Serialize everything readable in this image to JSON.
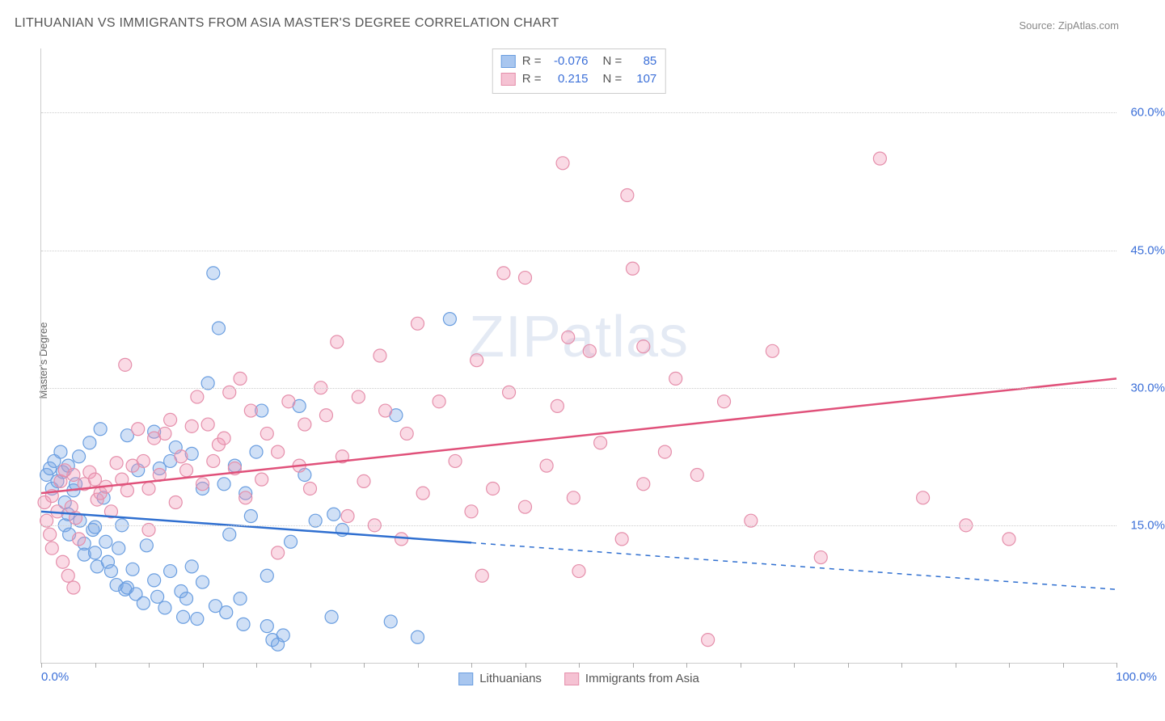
{
  "title": "LITHUANIAN VS IMMIGRANTS FROM ASIA MASTER'S DEGREE CORRELATION CHART",
  "source_label": "Source: ZipAtlas.com",
  "ylabel": "Master's Degree",
  "watermark_bold": "ZIP",
  "watermark_rest": "atlas",
  "chart": {
    "type": "scatter",
    "background_color": "#ffffff",
    "grid_color": "#cccccc",
    "xlim": [
      0,
      100
    ],
    "ylim": [
      0,
      67
    ],
    "x_tick_step": 5,
    "x_min_label": "0.0%",
    "x_max_label": "100.0%",
    "y_gridlines": [
      15,
      30,
      45,
      60
    ],
    "y_tick_labels": [
      "15.0%",
      "30.0%",
      "45.0%",
      "60.0%"
    ],
    "tick_label_color": "#3b6fd8",
    "tick_label_fontsize": 15,
    "axis_color": "#cccccc",
    "marker_radius": 8,
    "marker_stroke_width": 1.2,
    "trend_line_width": 2.5,
    "trend_dash_pattern": "6,6",
    "series": [
      {
        "id": "lithuanians",
        "label": "Lithuanians",
        "color_fill": "rgba(120,165,230,0.35)",
        "color_stroke": "#6a9ee0",
        "swatch_fill": "#a8c6ef",
        "swatch_border": "#6a9ee0",
        "R": "-0.076",
        "N": "85",
        "trend_color": "#2f6fd0",
        "trend_solid_x_end": 40,
        "trend_y_start": 16.5,
        "trend_y_end": 8.0,
        "points": [
          [
            0.5,
            20.5
          ],
          [
            0.8,
            21.2
          ],
          [
            1.0,
            19.0
          ],
          [
            1.2,
            22.0
          ],
          [
            1.5,
            19.8
          ],
          [
            1.8,
            23.0
          ],
          [
            2.0,
            20.8
          ],
          [
            2.2,
            17.5
          ],
          [
            2.2,
            15.0
          ],
          [
            2.5,
            21.5
          ],
          [
            2.5,
            16.2
          ],
          [
            2.6,
            14.0
          ],
          [
            3.0,
            18.8
          ],
          [
            3.2,
            19.5
          ],
          [
            3.5,
            22.5
          ],
          [
            3.6,
            15.5
          ],
          [
            4.0,
            13.0
          ],
          [
            4.0,
            11.8
          ],
          [
            4.5,
            24.0
          ],
          [
            4.8,
            14.5
          ],
          [
            5.0,
            14.8
          ],
          [
            5.0,
            12.0
          ],
          [
            5.2,
            10.5
          ],
          [
            5.5,
            25.5
          ],
          [
            5.8,
            18.0
          ],
          [
            6.0,
            13.2
          ],
          [
            6.2,
            11.0
          ],
          [
            6.5,
            10.0
          ],
          [
            7.0,
            8.5
          ],
          [
            7.2,
            12.5
          ],
          [
            7.5,
            15.0
          ],
          [
            7.8,
            8.0
          ],
          [
            8.0,
            8.2
          ],
          [
            8.0,
            24.8
          ],
          [
            8.5,
            10.2
          ],
          [
            8.8,
            7.5
          ],
          [
            9.0,
            21.0
          ],
          [
            9.5,
            6.5
          ],
          [
            9.8,
            12.8
          ],
          [
            10.5,
            9.0
          ],
          [
            10.5,
            25.2
          ],
          [
            10.8,
            7.2
          ],
          [
            11.0,
            21.2
          ],
          [
            11.5,
            6.0
          ],
          [
            12.0,
            10.0
          ],
          [
            12.0,
            22.0
          ],
          [
            12.5,
            23.5
          ],
          [
            13.0,
            7.8
          ],
          [
            13.2,
            5.0
          ],
          [
            13.5,
            7.0
          ],
          [
            14.0,
            10.5
          ],
          [
            14.0,
            22.8
          ],
          [
            14.5,
            4.8
          ],
          [
            15.0,
            8.8
          ],
          [
            15.0,
            19.0
          ],
          [
            15.5,
            30.5
          ],
          [
            16.0,
            42.5
          ],
          [
            16.2,
            6.2
          ],
          [
            16.5,
            36.5
          ],
          [
            17.0,
            19.5
          ],
          [
            17.2,
            5.5
          ],
          [
            17.5,
            14.0
          ],
          [
            18.0,
            21.5
          ],
          [
            18.5,
            7.0
          ],
          [
            18.8,
            4.2
          ],
          [
            19.0,
            18.5
          ],
          [
            19.5,
            16.0
          ],
          [
            20.0,
            23.0
          ],
          [
            20.5,
            27.5
          ],
          [
            21.0,
            4.0
          ],
          [
            21.0,
            9.5
          ],
          [
            21.5,
            2.5
          ],
          [
            22.0,
            2.0
          ],
          [
            22.5,
            3.0
          ],
          [
            23.2,
            13.2
          ],
          [
            24.0,
            28.0
          ],
          [
            24.5,
            20.5
          ],
          [
            25.5,
            15.5
          ],
          [
            27.0,
            5.0
          ],
          [
            27.2,
            16.2
          ],
          [
            28.0,
            14.5
          ],
          [
            32.5,
            4.5
          ],
          [
            33.0,
            27.0
          ],
          [
            35.0,
            2.8
          ],
          [
            38.0,
            37.5
          ]
        ]
      },
      {
        "id": "asia",
        "label": "Immigrants from Asia",
        "color_fill": "rgba(240,150,180,0.35)",
        "color_stroke": "#e58fab",
        "swatch_fill": "#f5c2d3",
        "swatch_border": "#e58fab",
        "R": "0.215",
        "N": "107",
        "trend_color": "#e0517a",
        "trend_solid_x_end": 100,
        "trend_y_start": 18.5,
        "trend_y_end": 31.0,
        "points": [
          [
            0.3,
            17.5
          ],
          [
            0.5,
            15.5
          ],
          [
            0.8,
            14.0
          ],
          [
            1.0,
            18.2
          ],
          [
            1.0,
            12.5
          ],
          [
            1.5,
            16.5
          ],
          [
            1.8,
            19.8
          ],
          [
            2.0,
            11.0
          ],
          [
            2.2,
            21.0
          ],
          [
            2.5,
            9.5
          ],
          [
            2.8,
            17.0
          ],
          [
            3.0,
            20.5
          ],
          [
            3.0,
            8.2
          ],
          [
            3.2,
            15.8
          ],
          [
            3.5,
            13.5
          ],
          [
            4.0,
            19.5
          ],
          [
            4.5,
            20.8
          ],
          [
            5.0,
            20.0
          ],
          [
            5.2,
            17.8
          ],
          [
            5.5,
            18.5
          ],
          [
            6.0,
            19.2
          ],
          [
            6.5,
            16.5
          ],
          [
            7.0,
            21.8
          ],
          [
            7.5,
            20.0
          ],
          [
            7.8,
            32.5
          ],
          [
            8.0,
            18.8
          ],
          [
            8.5,
            21.5
          ],
          [
            9.0,
            25.5
          ],
          [
            9.5,
            22.0
          ],
          [
            10.0,
            19.0
          ],
          [
            10.0,
            14.5
          ],
          [
            10.5,
            24.5
          ],
          [
            11.0,
            20.5
          ],
          [
            11.5,
            25.0
          ],
          [
            12.0,
            26.5
          ],
          [
            12.5,
            17.5
          ],
          [
            13.0,
            22.5
          ],
          [
            13.5,
            21.0
          ],
          [
            14.0,
            25.8
          ],
          [
            14.5,
            29.0
          ],
          [
            15.0,
            19.5
          ],
          [
            15.5,
            26.0
          ],
          [
            16.0,
            22.0
          ],
          [
            16.5,
            23.8
          ],
          [
            17.0,
            24.5
          ],
          [
            17.5,
            29.5
          ],
          [
            18.0,
            21.2
          ],
          [
            18.5,
            31.0
          ],
          [
            19.0,
            18.0
          ],
          [
            19.5,
            27.5
          ],
          [
            20.5,
            20.0
          ],
          [
            21.0,
            25.0
          ],
          [
            22.0,
            23.0
          ],
          [
            22.0,
            12.0
          ],
          [
            23.0,
            28.5
          ],
          [
            24.0,
            21.5
          ],
          [
            24.5,
            26.0
          ],
          [
            25.0,
            19.0
          ],
          [
            26.0,
            30.0
          ],
          [
            26.5,
            27.0
          ],
          [
            27.5,
            35.0
          ],
          [
            28.0,
            22.5
          ],
          [
            28.5,
            16.0
          ],
          [
            29.5,
            29.0
          ],
          [
            30.0,
            19.8
          ],
          [
            31.0,
            15.0
          ],
          [
            31.5,
            33.5
          ],
          [
            32.0,
            27.5
          ],
          [
            33.5,
            13.5
          ],
          [
            34.0,
            25.0
          ],
          [
            35.0,
            37.0
          ],
          [
            35.5,
            18.5
          ],
          [
            37.0,
            28.5
          ],
          [
            38.5,
            22.0
          ],
          [
            40.0,
            16.5
          ],
          [
            40.5,
            33.0
          ],
          [
            41.0,
            9.5
          ],
          [
            42.0,
            19.0
          ],
          [
            43.0,
            42.5
          ],
          [
            43.5,
            29.5
          ],
          [
            45.0,
            17.0
          ],
          [
            45.0,
            42.0
          ],
          [
            47.0,
            21.5
          ],
          [
            48.0,
            28.0
          ],
          [
            48.5,
            54.5
          ],
          [
            49.0,
            35.5
          ],
          [
            49.5,
            18.0
          ],
          [
            50.0,
            10.0
          ],
          [
            51.0,
            34.0
          ],
          [
            52.0,
            24.0
          ],
          [
            54.0,
            13.5
          ],
          [
            54.5,
            51.0
          ],
          [
            55.0,
            43.0
          ],
          [
            56.0,
            19.5
          ],
          [
            56.0,
            34.5
          ],
          [
            58.0,
            23.0
          ],
          [
            59.0,
            31.0
          ],
          [
            61.0,
            20.5
          ],
          [
            62.0,
            2.5
          ],
          [
            63.5,
            28.5
          ],
          [
            66.0,
            15.5
          ],
          [
            68.0,
            34.0
          ],
          [
            72.5,
            11.5
          ],
          [
            78.0,
            55.0
          ],
          [
            82.0,
            18.0
          ],
          [
            86.0,
            15.0
          ],
          [
            90.0,
            13.5
          ]
        ]
      }
    ]
  },
  "corr_box": {
    "r_label": "R =",
    "n_label": "N ="
  }
}
